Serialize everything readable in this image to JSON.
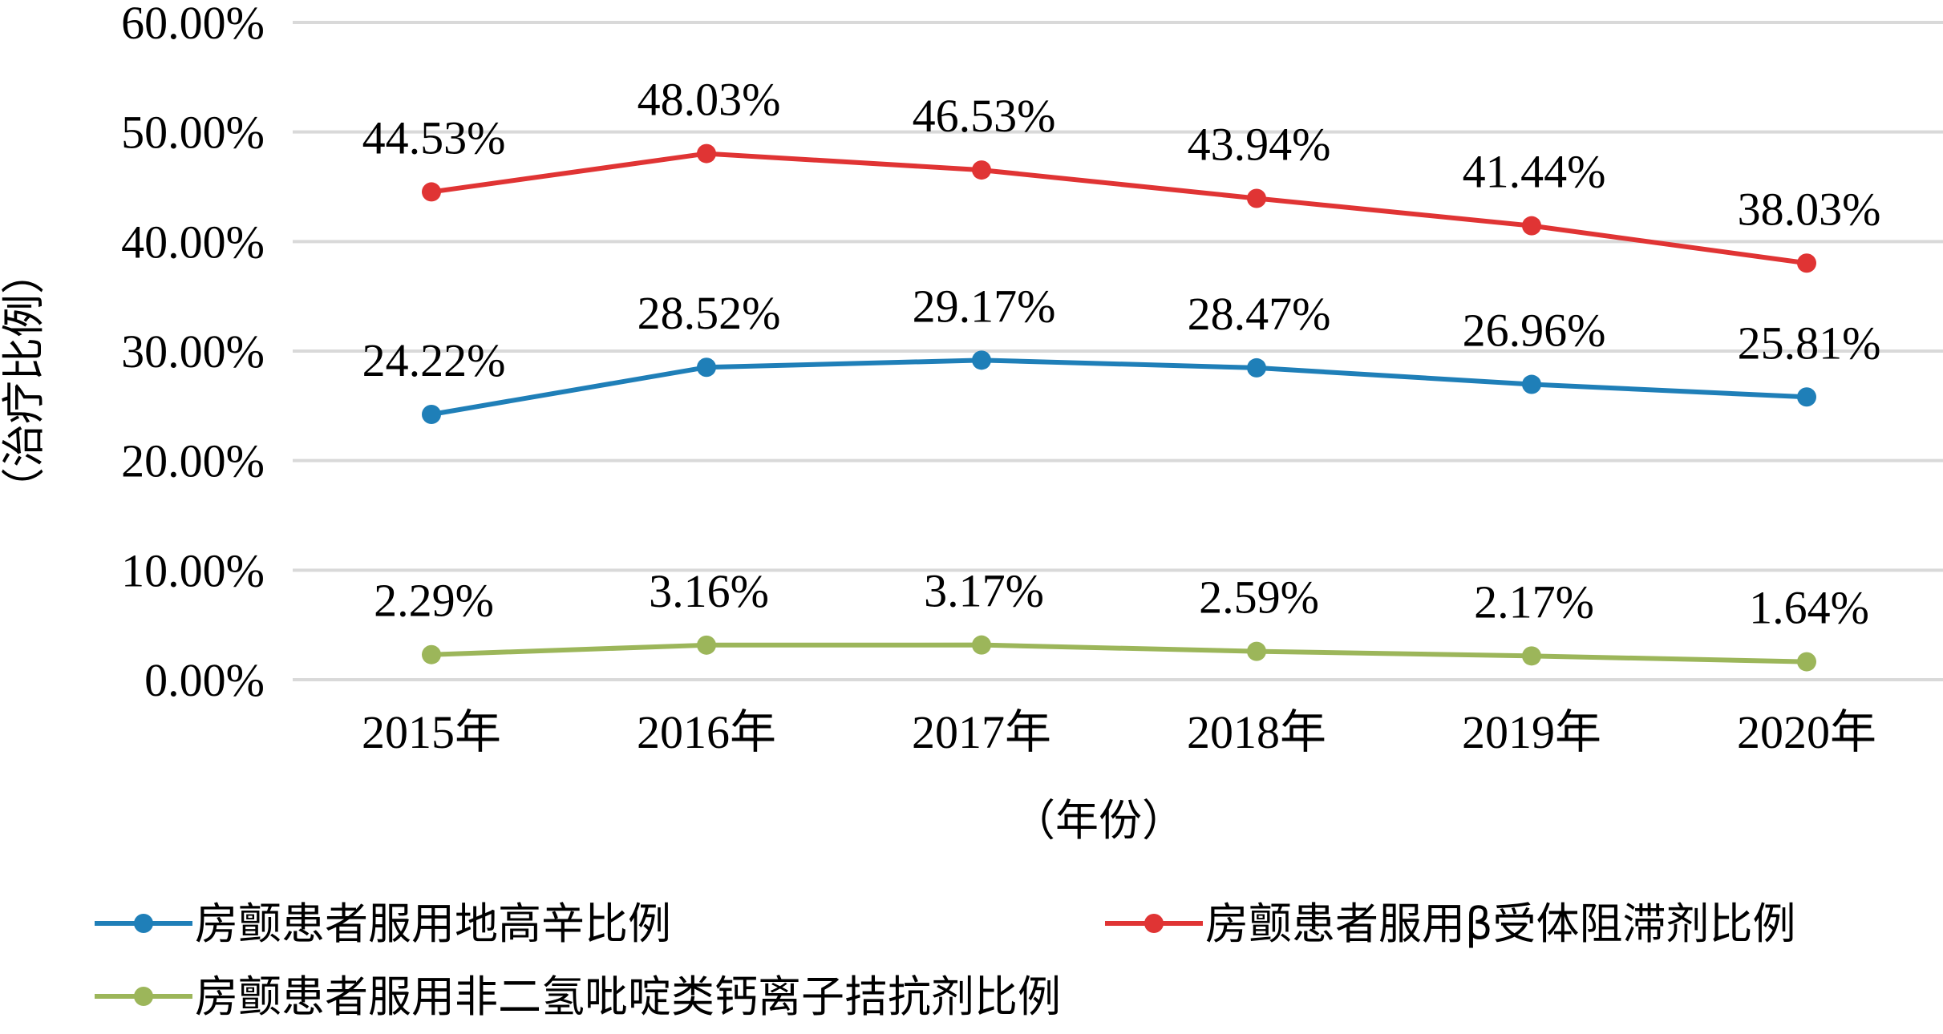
{
  "chart_data": {
    "type": "line",
    "title": "",
    "xlabel": "（年份）",
    "ylabel": "（治疗比例）",
    "ylim": [
      0,
      60
    ],
    "yticks": [
      "0.00%",
      "10.00%",
      "20.00%",
      "30.00%",
      "40.00%",
      "50.00%",
      "60.00%"
    ],
    "categories": [
      "2015年",
      "2016年",
      "2017年",
      "2018年",
      "2019年",
      "2020年"
    ],
    "grid": true,
    "legend_position": "bottom",
    "series": [
      {
        "name": "房颤患者服用地高辛比例",
        "color": "#1f7fb8",
        "values": [
          24.22,
          28.52,
          29.17,
          28.47,
          26.96,
          25.81
        ],
        "labels": [
          "24.22%",
          "28.52%",
          "29.17%",
          "28.47%",
          "26.96%",
          "25.81%"
        ]
      },
      {
        "name": "房颤患者服用β受体阻滞剂比例",
        "color": "#e03434",
        "values": [
          44.53,
          48.03,
          46.53,
          43.94,
          41.44,
          38.03
        ],
        "labels": [
          "44.53%",
          "48.03%",
          "46.53%",
          "43.94%",
          "41.44%",
          "38.03%"
        ]
      },
      {
        "name": "房颤患者服用非二氢吡啶类钙离子拮抗剂比例",
        "color": "#9cb65a",
        "values": [
          2.29,
          3.16,
          3.17,
          2.59,
          2.17,
          1.64
        ],
        "labels": [
          "2.29%",
          "3.16%",
          "3.17%",
          "2.59%",
          "2.17%",
          "1.64%"
        ]
      }
    ]
  }
}
